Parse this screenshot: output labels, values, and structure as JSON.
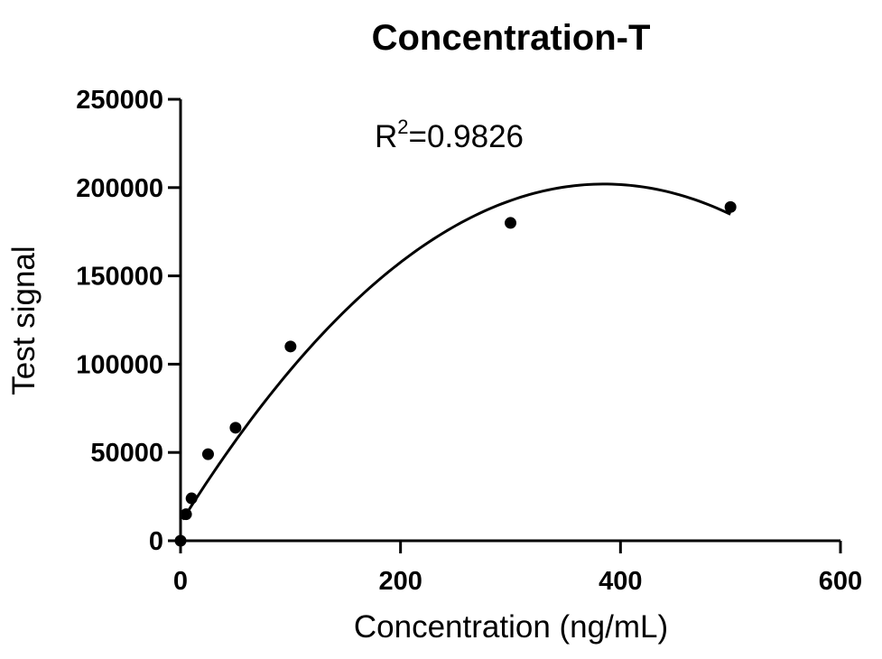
{
  "chart_data": {
    "type": "scatter",
    "title": "Concentration-T",
    "xlabel": "Concentration (ng/mL)",
    "ylabel": "Test signal",
    "xlim": [
      0,
      600
    ],
    "ylim": [
      0,
      250000
    ],
    "x_ticks": [
      0,
      200,
      400,
      600
    ],
    "y_ticks": [
      0,
      50000,
      100000,
      150000,
      200000,
      250000
    ],
    "x_tick_labels": [
      "0",
      "200",
      "400",
      "600"
    ],
    "y_tick_labels": [
      "0",
      "50000",
      "100000",
      "150000",
      "200000",
      "250000"
    ],
    "grid": false,
    "legend": "none",
    "points": [
      {
        "x": 0,
        "y": 0
      },
      {
        "x": 5,
        "y": 15000
      },
      {
        "x": 10,
        "y": 24000
      },
      {
        "x": 25,
        "y": 49000
      },
      {
        "x": 50,
        "y": 64000
      },
      {
        "x": 100,
        "y": 110000
      },
      {
        "x": 300,
        "y": 180000
      },
      {
        "x": 500,
        "y": 189000
      }
    ],
    "fit": {
      "type": "quadratic",
      "x_range": [
        2,
        500
      ],
      "y_at_start": 12000,
      "vertex": {
        "x": 385,
        "y": 202000
      }
    },
    "annotation": {
      "base": "R",
      "sup": "2",
      "rest": "=0.9826"
    },
    "colors": {
      "marker": "#000000",
      "line": "#000000",
      "axis": "#000000"
    }
  }
}
